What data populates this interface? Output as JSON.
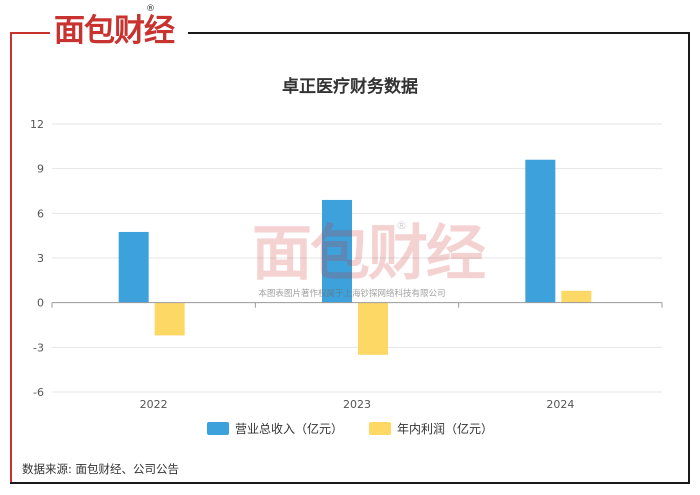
{
  "brand": {
    "name": "面包财经",
    "mark": "®"
  },
  "watermark": {
    "logo": "面包财经",
    "mark": "®",
    "text": "本图表图片著作权属于上海钞探网络科技有限公司"
  },
  "source_note": "数据来源: 面包财经、公司公告",
  "colors": {
    "revenue": "#3da1dc",
    "profit": "#fdd865",
    "brand_red": "#c8322f"
  },
  "chart_data": {
    "type": "bar",
    "title": "卓正医疗财务数据",
    "categories": [
      "2022",
      "2023",
      "2024"
    ],
    "series": [
      {
        "name": "营业总收入（亿元）",
        "values": [
          4.75,
          6.9,
          9.6
        ]
      },
      {
        "name": "年内利润（亿元）",
        "values": [
          -2.2,
          -3.5,
          0.8
        ]
      }
    ],
    "y_ticks": [
      12,
      9,
      6,
      3,
      0,
      -3,
      -6
    ],
    "ylim": [
      -6,
      12
    ],
    "xlabel": "",
    "ylabel": "",
    "grid": true,
    "legend": "bottom"
  }
}
